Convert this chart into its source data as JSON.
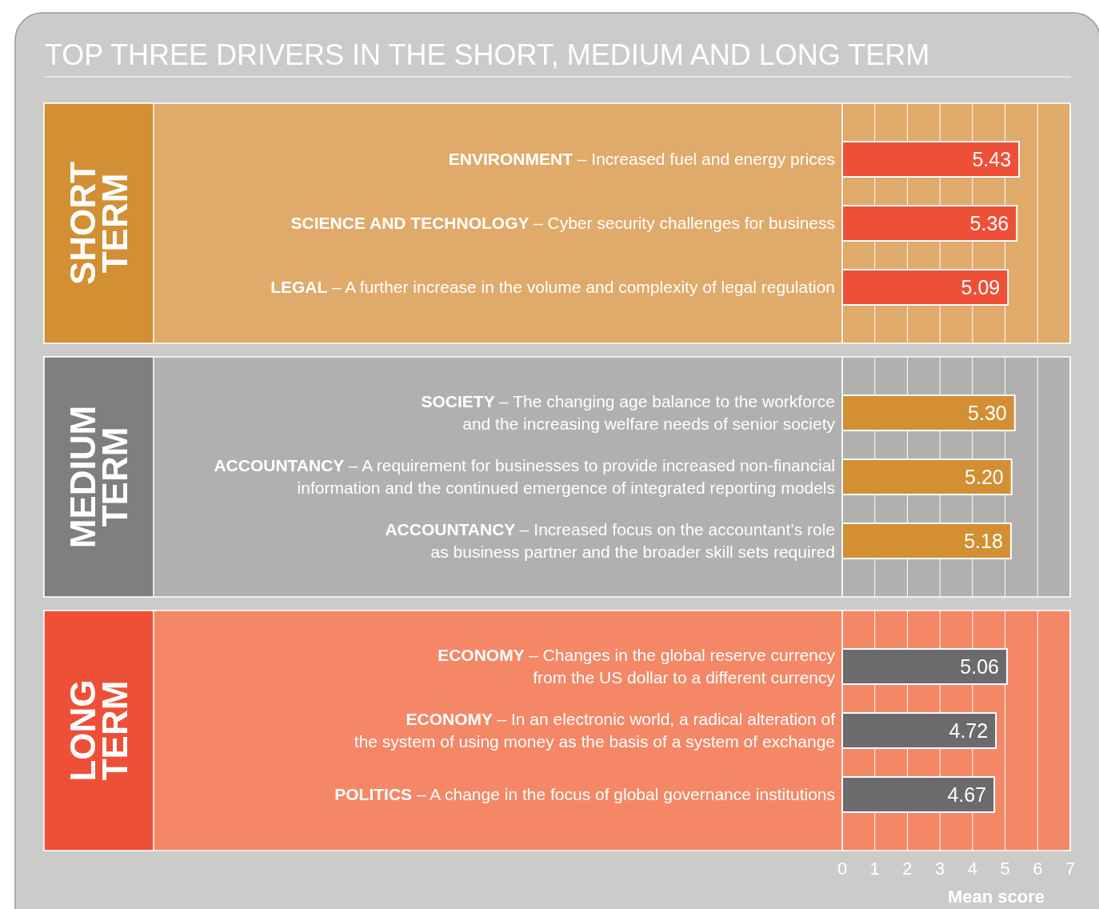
{
  "chart_data": [
    {
      "type": "bar",
      "orientation": "horizontal",
      "title": "TOP THREE DRIVERS IN THE SHORT, MEDIUM AND LONG TERM",
      "ylabel": "SHORT TERM",
      "categories": [
        "ENVIRONMENT – Increased fuel and energy prices",
        "SCIENCE AND TECHNOLOGY – Cyber security challenges for business",
        "LEGAL – A further increase in the volume and complexity of legal regulation"
      ],
      "values": [
        5.43,
        5.36,
        5.09
      ],
      "value_labels": [
        "5.43",
        "5.36",
        "5.09"
      ],
      "color": "#ee5037",
      "xlim": [
        0,
        7
      ],
      "xticks": [
        0,
        1,
        2,
        3,
        4,
        5,
        6,
        7
      ],
      "grid": "x",
      "tick_labels": false
    },
    {
      "type": "bar",
      "orientation": "horizontal",
      "ylabel": "MEDIUM TERM",
      "categories": [
        "SOCIETY – The changing age balance to the workforce and the increasing welfare needs of senior society",
        "ACCOUNTANCY – A requirement for businesses to provide increased non-financial information and the continued emergence of integrated reporting models",
        "ACCOUNTANCY – Increased focus on the accountant’s role as business partner and the broader skill sets required"
      ],
      "values": [
        5.3,
        5.2,
        5.18
      ],
      "value_labels": [
        "5.30",
        "5.20",
        "5.18"
      ],
      "color": "#d38f33",
      "xlim": [
        0,
        7
      ],
      "xticks": [
        0,
        1,
        2,
        3,
        4,
        5,
        6,
        7
      ],
      "grid": "x",
      "tick_labels": false
    },
    {
      "type": "bar",
      "orientation": "horizontal",
      "ylabel": "LONG TERM",
      "xlabel": "Mean score",
      "categories": [
        "ECONOMY – Changes in the global reserve currency from the US dollar to a different currency",
        "ECONOMY – In an electronic world, a radical alteration of the system of using money as the basis of a system of exchange",
        "POLITICS – A change in the focus of global governance institutions"
      ],
      "values": [
        5.06,
        4.72,
        4.67
      ],
      "value_labels": [
        "5.06",
        "4.72",
        "4.67"
      ],
      "color": "#6b6b6d",
      "xlim": [
        0,
        7
      ],
      "xticks": [
        0,
        1,
        2,
        3,
        4,
        5,
        6,
        7
      ],
      "grid": "x",
      "tick_labels": "x"
    }
  ]
}
